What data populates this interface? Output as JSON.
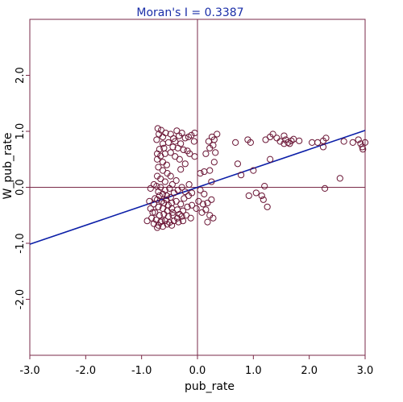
{
  "chart_data": {
    "type": "scatter",
    "title": "Moran's I = 0.3387",
    "xlabel": "pub_rate",
    "ylabel": "W_pub_rate",
    "xlim": [
      -3.0,
      3.0
    ],
    "ylim": [
      -3.0,
      3.0
    ],
    "x_ticks": [
      "-3.0",
      "-2.0",
      "-1.0",
      "0.0",
      "1.0",
      "2.0",
      "3.0"
    ],
    "y_ticks": [
      "-2.0",
      "-1.0",
      "0.0",
      "1.0",
      "2.0"
    ],
    "y_tick_values": [
      -2.0,
      -1.0,
      0.0,
      1.0,
      2.0
    ],
    "grid": false,
    "reference_lines": {
      "x": 0.0,
      "y": 0.0
    },
    "regression_line": {
      "slope": 0.3387,
      "intercept": 0.0
    },
    "colors": {
      "frame": "#7a2a48",
      "points": "#6a1535",
      "regression": "#0c1fa8",
      "title": "#1a2ea8"
    },
    "points": [
      [
        -0.71,
        1.05
      ],
      [
        -0.65,
        1.02
      ],
      [
        -0.69,
        0.95
      ],
      [
        -0.62,
        0.9
      ],
      [
        -0.73,
        0.85
      ],
      [
        -0.57,
        0.97
      ],
      [
        -0.48,
        0.95
      ],
      [
        -0.43,
        0.87
      ],
      [
        -0.37,
        1.01
      ],
      [
        -0.33,
        0.92
      ],
      [
        -0.28,
        0.97
      ],
      [
        -0.22,
        0.88
      ],
      [
        -0.16,
        0.9
      ],
      [
        -0.11,
        0.93
      ],
      [
        -0.05,
        0.97
      ],
      [
        -0.06,
        0.82
      ],
      [
        -0.62,
        0.78
      ],
      [
        -0.52,
        0.8
      ],
      [
        -0.4,
        0.82
      ],
      [
        -0.3,
        0.78
      ],
      [
        -0.44,
        0.72
      ],
      [
        -0.35,
        0.7
      ],
      [
        -0.25,
        0.67
      ],
      [
        -0.18,
        0.65
      ],
      [
        -0.6,
        0.7
      ],
      [
        -0.68,
        0.68
      ],
      [
        -0.72,
        0.6
      ],
      [
        -0.66,
        0.56
      ],
      [
        -0.58,
        0.6
      ],
      [
        -0.48,
        0.62
      ],
      [
        -0.4,
        0.55
      ],
      [
        -0.32,
        0.5
      ],
      [
        -0.72,
        0.5
      ],
      [
        -0.62,
        0.45
      ],
      [
        -0.55,
        0.4
      ],
      [
        -0.7,
        0.36
      ],
      [
        -0.62,
        0.3
      ],
      [
        -0.54,
        0.25
      ],
      [
        -0.72,
        0.2
      ],
      [
        -0.66,
        0.15
      ],
      [
        -0.58,
        0.1
      ],
      [
        -0.48,
        0.2
      ],
      [
        -0.45,
        0.05
      ],
      [
        -0.38,
        0.12
      ],
      [
        -0.3,
        0.32
      ],
      [
        -0.22,
        0.42
      ],
      [
        -0.14,
        0.6
      ],
      [
        -0.05,
        0.55
      ],
      [
        -0.73,
        0.02
      ],
      [
        -0.66,
        0.0
      ],
      [
        -0.58,
        -0.05
      ],
      [
        -0.5,
        -0.02
      ],
      [
        -0.78,
        0.05
      ],
      [
        -0.84,
        -0.02
      ],
      [
        -0.7,
        -0.08
      ],
      [
        -0.62,
        -0.12
      ],
      [
        -0.55,
        -0.15
      ],
      [
        -0.48,
        -0.18
      ],
      [
        -0.42,
        -0.1
      ],
      [
        -0.35,
        -0.05
      ],
      [
        -0.28,
        0.0
      ],
      [
        -0.22,
        -0.08
      ],
      [
        -0.15,
        0.05
      ],
      [
        -0.72,
        -0.22
      ],
      [
        -0.64,
        -0.25
      ],
      [
        -0.56,
        -0.22
      ],
      [
        -0.46,
        -0.28
      ],
      [
        -0.38,
        -0.25
      ],
      [
        -0.3,
        -0.3
      ],
      [
        -0.78,
        -0.3
      ],
      [
        -0.86,
        -0.25
      ],
      [
        -0.7,
        -0.35
      ],
      [
        -0.62,
        -0.38
      ],
      [
        -0.54,
        -0.42
      ],
      [
        -0.46,
        -0.38
      ],
      [
        -0.36,
        -0.4
      ],
      [
        -0.26,
        -0.42
      ],
      [
        -0.18,
        -0.35
      ],
      [
        -0.1,
        -0.32
      ],
      [
        -0.02,
        -0.38
      ],
      [
        -0.76,
        -0.45
      ],
      [
        -0.68,
        -0.5
      ],
      [
        -0.6,
        -0.48
      ],
      [
        -0.52,
        -0.52
      ],
      [
        -0.44,
        -0.5
      ],
      [
        -0.36,
        -0.55
      ],
      [
        -0.28,
        -0.52
      ],
      [
        -0.2,
        -0.5
      ],
      [
        -0.12,
        -0.55
      ],
      [
        -0.82,
        -0.55
      ],
      [
        -0.9,
        -0.6
      ],
      [
        -0.74,
        -0.58
      ],
      [
        -0.66,
        -0.62
      ],
      [
        -0.58,
        -0.6
      ],
      [
        -0.5,
        -0.63
      ],
      [
        -0.42,
        -0.6
      ],
      [
        -0.34,
        -0.62
      ],
      [
        -0.26,
        -0.6
      ],
      [
        -0.78,
        -0.65
      ],
      [
        -0.7,
        -0.68
      ],
      [
        -0.62,
        -0.7
      ],
      [
        -0.54,
        -0.66
      ],
      [
        -0.46,
        -0.68
      ],
      [
        -0.72,
        -0.72
      ],
      [
        -0.64,
        -0.6
      ],
      [
        -0.8,
        -0.45
      ],
      [
        -0.84,
        -0.38
      ],
      [
        -0.76,
        -0.2
      ],
      [
        -0.68,
        -0.15
      ],
      [
        -0.6,
        -0.28
      ],
      [
        -0.52,
        -0.32
      ],
      [
        -0.44,
        -0.45
      ],
      [
        -0.32,
        -0.48
      ],
      [
        -0.24,
        -0.2
      ],
      [
        -0.16,
        -0.15
      ],
      [
        -0.1,
        -0.1
      ],
      [
        0.05,
        -0.05
      ],
      [
        0.12,
        -0.12
      ],
      [
        0.02,
        -0.25
      ],
      [
        0.1,
        -0.3
      ],
      [
        0.18,
        -0.28
      ],
      [
        0.25,
        -0.22
      ],
      [
        0.15,
        -0.4
      ],
      [
        0.08,
        -0.45
      ],
      [
        0.22,
        -0.5
      ],
      [
        0.28,
        -0.55
      ],
      [
        0.18,
        -0.62
      ],
      [
        0.25,
        0.1
      ],
      [
        0.22,
        0.3
      ],
      [
        0.3,
        0.45
      ],
      [
        0.32,
        0.62
      ],
      [
        0.28,
        0.75
      ],
      [
        0.22,
        0.7
      ],
      [
        0.15,
        0.6
      ],
      [
        0.2,
        0.82
      ],
      [
        0.26,
        0.9
      ],
      [
        0.3,
        0.85
      ],
      [
        0.35,
        0.95
      ],
      [
        0.05,
        0.25
      ],
      [
        0.12,
        0.28
      ],
      [
        0.68,
        0.8
      ],
      [
        0.72,
        0.42
      ],
      [
        0.78,
        0.22
      ],
      [
        0.9,
        0.85
      ],
      [
        0.95,
        0.8
      ],
      [
        0.92,
        -0.15
      ],
      [
        1.05,
        -0.1
      ],
      [
        1.15,
        -0.15
      ],
      [
        1.18,
        -0.22
      ],
      [
        1.25,
        -0.35
      ],
      [
        1.2,
        0.02
      ],
      [
        1.22,
        0.85
      ],
      [
        1.3,
        0.9
      ],
      [
        1.35,
        0.95
      ],
      [
        1.42,
        0.88
      ],
      [
        1.48,
        0.82
      ],
      [
        1.55,
        0.92
      ],
      [
        1.58,
        0.85
      ],
      [
        1.62,
        0.8
      ],
      [
        1.65,
        0.78
      ],
      [
        1.55,
        0.78
      ],
      [
        1.68,
        0.83
      ],
      [
        1.72,
        0.86
      ],
      [
        1.82,
        0.83
      ],
      [
        2.05,
        0.8
      ],
      [
        2.15,
        0.8
      ],
      [
        2.25,
        0.83
      ],
      [
        2.3,
        0.88
      ],
      [
        2.25,
        0.72
      ],
      [
        2.28,
        -0.02
      ],
      [
        2.55,
        0.16
      ],
      [
        2.62,
        0.82
      ],
      [
        2.78,
        0.8
      ],
      [
        2.88,
        0.85
      ],
      [
        2.92,
        0.78
      ],
      [
        2.95,
        0.72
      ],
      [
        2.96,
        0.68
      ],
      [
        3.0,
        0.8
      ],
      [
        1.0,
        0.3
      ],
      [
        1.3,
        0.5
      ]
    ]
  }
}
